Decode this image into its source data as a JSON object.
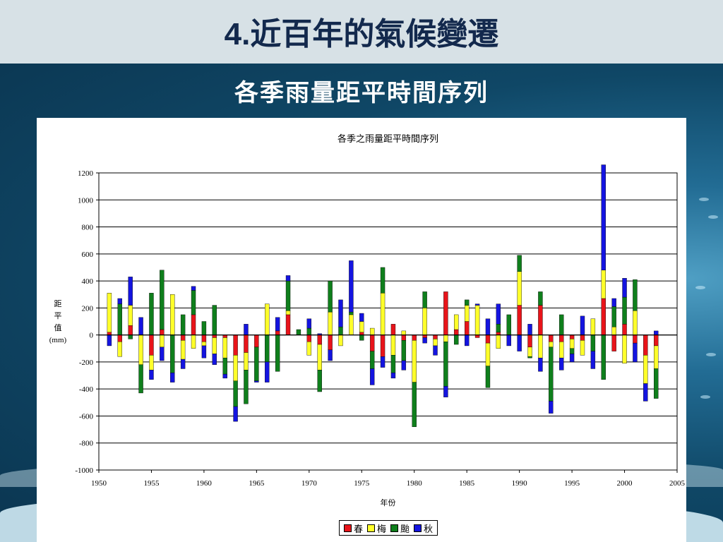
{
  "slide": {
    "title_num": "4.",
    "title_text": "近百年的氣候變遷",
    "subtitle": "各季雨量距平時間序列"
  },
  "colors": {
    "spring": "#e8141a",
    "meiyu": "#ffff2a",
    "typhoon": "#0f7f1c",
    "autumn": "#1414e0"
  },
  "chart_data": {
    "type": "bar",
    "stacked": true,
    "title": "各季之雨量距平時間序列",
    "xlabel": "年份",
    "ylabel_chars": [
      "距",
      "平",
      "值",
      "(mm)"
    ],
    "xlim": [
      1950,
      2005
    ],
    "ylim": [
      -1000,
      1200
    ],
    "x_ticks": [
      1950,
      1955,
      1960,
      1965,
      1970,
      1975,
      1980,
      1985,
      1990,
      1995,
      2000,
      2005
    ],
    "y_ticks": [
      1200,
      1000,
      800,
      600,
      400,
      200,
      0,
      -200,
      -400,
      -600,
      -800,
      -1000
    ],
    "grid": "horizontal",
    "legend": "bottom-center",
    "series": [
      {
        "name": "春",
        "key": "spring"
      },
      {
        "name": "梅",
        "key": "meiyu"
      },
      {
        "name": "颱",
        "key": "typhoon"
      },
      {
        "name": "秋",
        "key": "autumn"
      }
    ],
    "years": [
      1951,
      1952,
      1953,
      1954,
      1955,
      1956,
      1957,
      1958,
      1959,
      1960,
      1961,
      1962,
      1963,
      1964,
      1965,
      1966,
      1967,
      1968,
      1969,
      1970,
      1971,
      1972,
      1973,
      1974,
      1975,
      1976,
      1977,
      1978,
      1979,
      1980,
      1981,
      1982,
      1983,
      1984,
      1985,
      1986,
      1987,
      1988,
      1989,
      1990,
      1991,
      1992,
      1993,
      1994,
      1995,
      1996,
      1997,
      1998,
      1999,
      2000,
      2001,
      2002,
      2003
    ],
    "spring": [
      20,
      -50,
      70,
      0,
      -150,
      40,
      0,
      -40,
      150,
      -50,
      -20,
      -20,
      -150,
      -130,
      -90,
      0,
      30,
      150,
      0,
      -50,
      -70,
      -110,
      0,
      0,
      20,
      -120,
      -160,
      80,
      -40,
      -40,
      -20,
      -30,
      320,
      40,
      100,
      -20,
      -60,
      20,
      0,
      220,
      -90,
      220,
      -50,
      -50,
      -30,
      -40,
      0,
      270,
      -120,
      80,
      -60,
      -150,
      -80
    ],
    "meiyu": [
      290,
      -110,
      150,
      -220,
      -110,
      -90,
      300,
      -140,
      -100,
      -30,
      -120,
      -150,
      -190,
      -130,
      0,
      230,
      0,
      30,
      0,
      -100,
      -190,
      170,
      -80,
      150,
      80,
      50,
      310,
      -150,
      30,
      -310,
      200,
      -50,
      -50,
      110,
      120,
      220,
      -170,
      -100,
      0,
      250,
      -70,
      -170,
      -40,
      -120,
      -70,
      -110,
      120,
      210,
      60,
      -210,
      180,
      -210,
      -170
    ],
    "typhoon": [
      0,
      230,
      -30,
      -210,
      310,
      440,
      -280,
      150,
      180,
      100,
      220,
      -120,
      -190,
      -250,
      -250,
      -200,
      -270,
      220,
      40,
      50,
      -160,
      230,
      60,
      20,
      -40,
      -130,
      190,
      -130,
      -150,
      -330,
      120,
      0,
      -330,
      -70,
      40,
      0,
      -160,
      60,
      150,
      120,
      -10,
      100,
      -400,
      150,
      -40,
      0,
      -120,
      -330,
      150,
      200,
      230,
      0,
      -220
    ],
    "autumn": [
      -80,
      40,
      210,
      130,
      -70,
      -100,
      -70,
      -70,
      30,
      -90,
      -80,
      -30,
      -110,
      80,
      -10,
      -150,
      100,
      40,
      0,
      70,
      10,
      -80,
      200,
      380,
      60,
      -120,
      -80,
      -40,
      -70,
      0,
      -40,
      -70,
      -80,
      0,
      -80,
      10,
      120,
      150,
      -80,
      -120,
      80,
      -100,
      -90,
      -90,
      -60,
      140,
      -130,
      780,
      60,
      140,
      -140,
      -130,
      30
    ]
  },
  "legend_labels": [
    "春",
    "梅",
    "颱",
    "秋"
  ]
}
